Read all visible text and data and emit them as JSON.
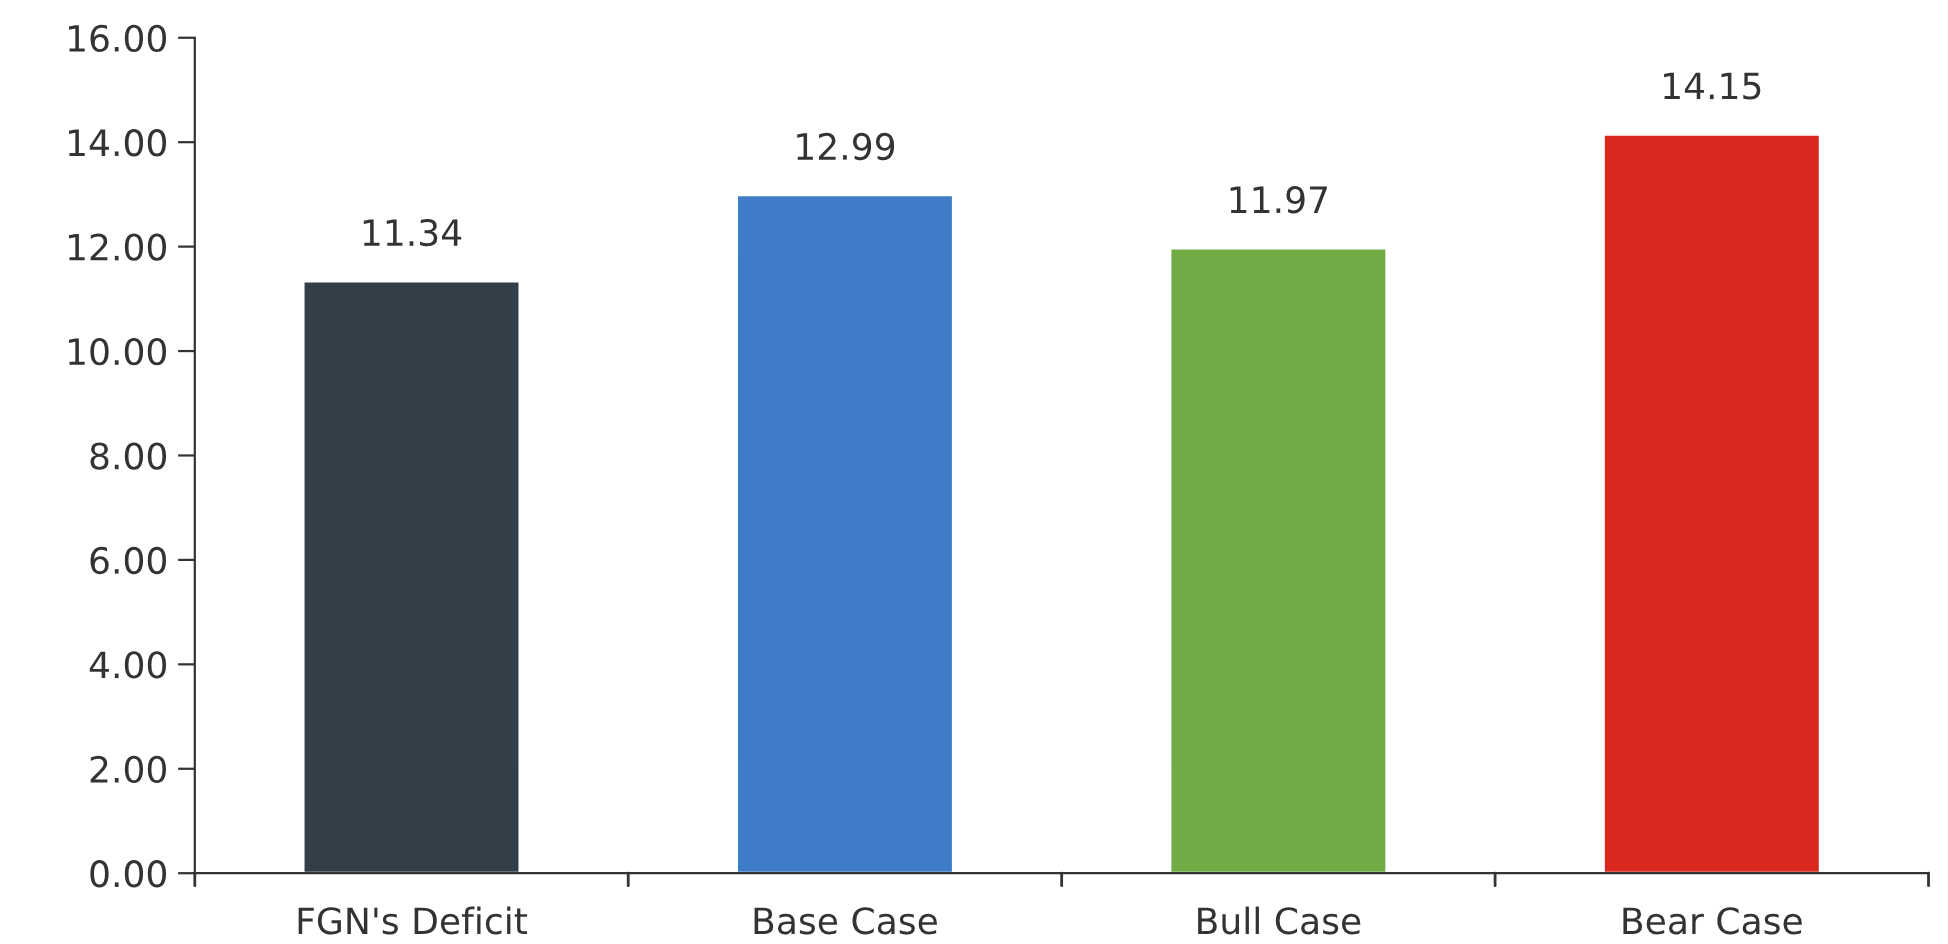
{
  "chart_data": {
    "type": "bar",
    "categories": [
      "FGN's Deficit",
      "Base Case",
      "Bull Case",
      "Bear Case"
    ],
    "values": [
      11.34,
      12.99,
      11.97,
      14.15
    ],
    "colors": [
      "#333f48",
      "#3f7cc8",
      "#70ab46",
      "#d9281e"
    ],
    "value_labels": [
      "11.34",
      "12.99",
      "11.97",
      "14.15"
    ],
    "ylim": [
      0,
      16
    ],
    "yticks": [
      {
        "value": 0,
        "label": "0.00"
      },
      {
        "value": 2,
        "label": "2.00"
      },
      {
        "value": 4,
        "label": "4.00"
      },
      {
        "value": 6,
        "label": "6.00"
      },
      {
        "value": 8,
        "label": "8.00"
      },
      {
        "value": 10,
        "label": "10.00"
      },
      {
        "value": 12,
        "label": "12.00"
      },
      {
        "value": 14,
        "label": "14.00"
      },
      {
        "value": 16,
        "label": "16.00"
      }
    ],
    "grid": false,
    "legend": false
  }
}
